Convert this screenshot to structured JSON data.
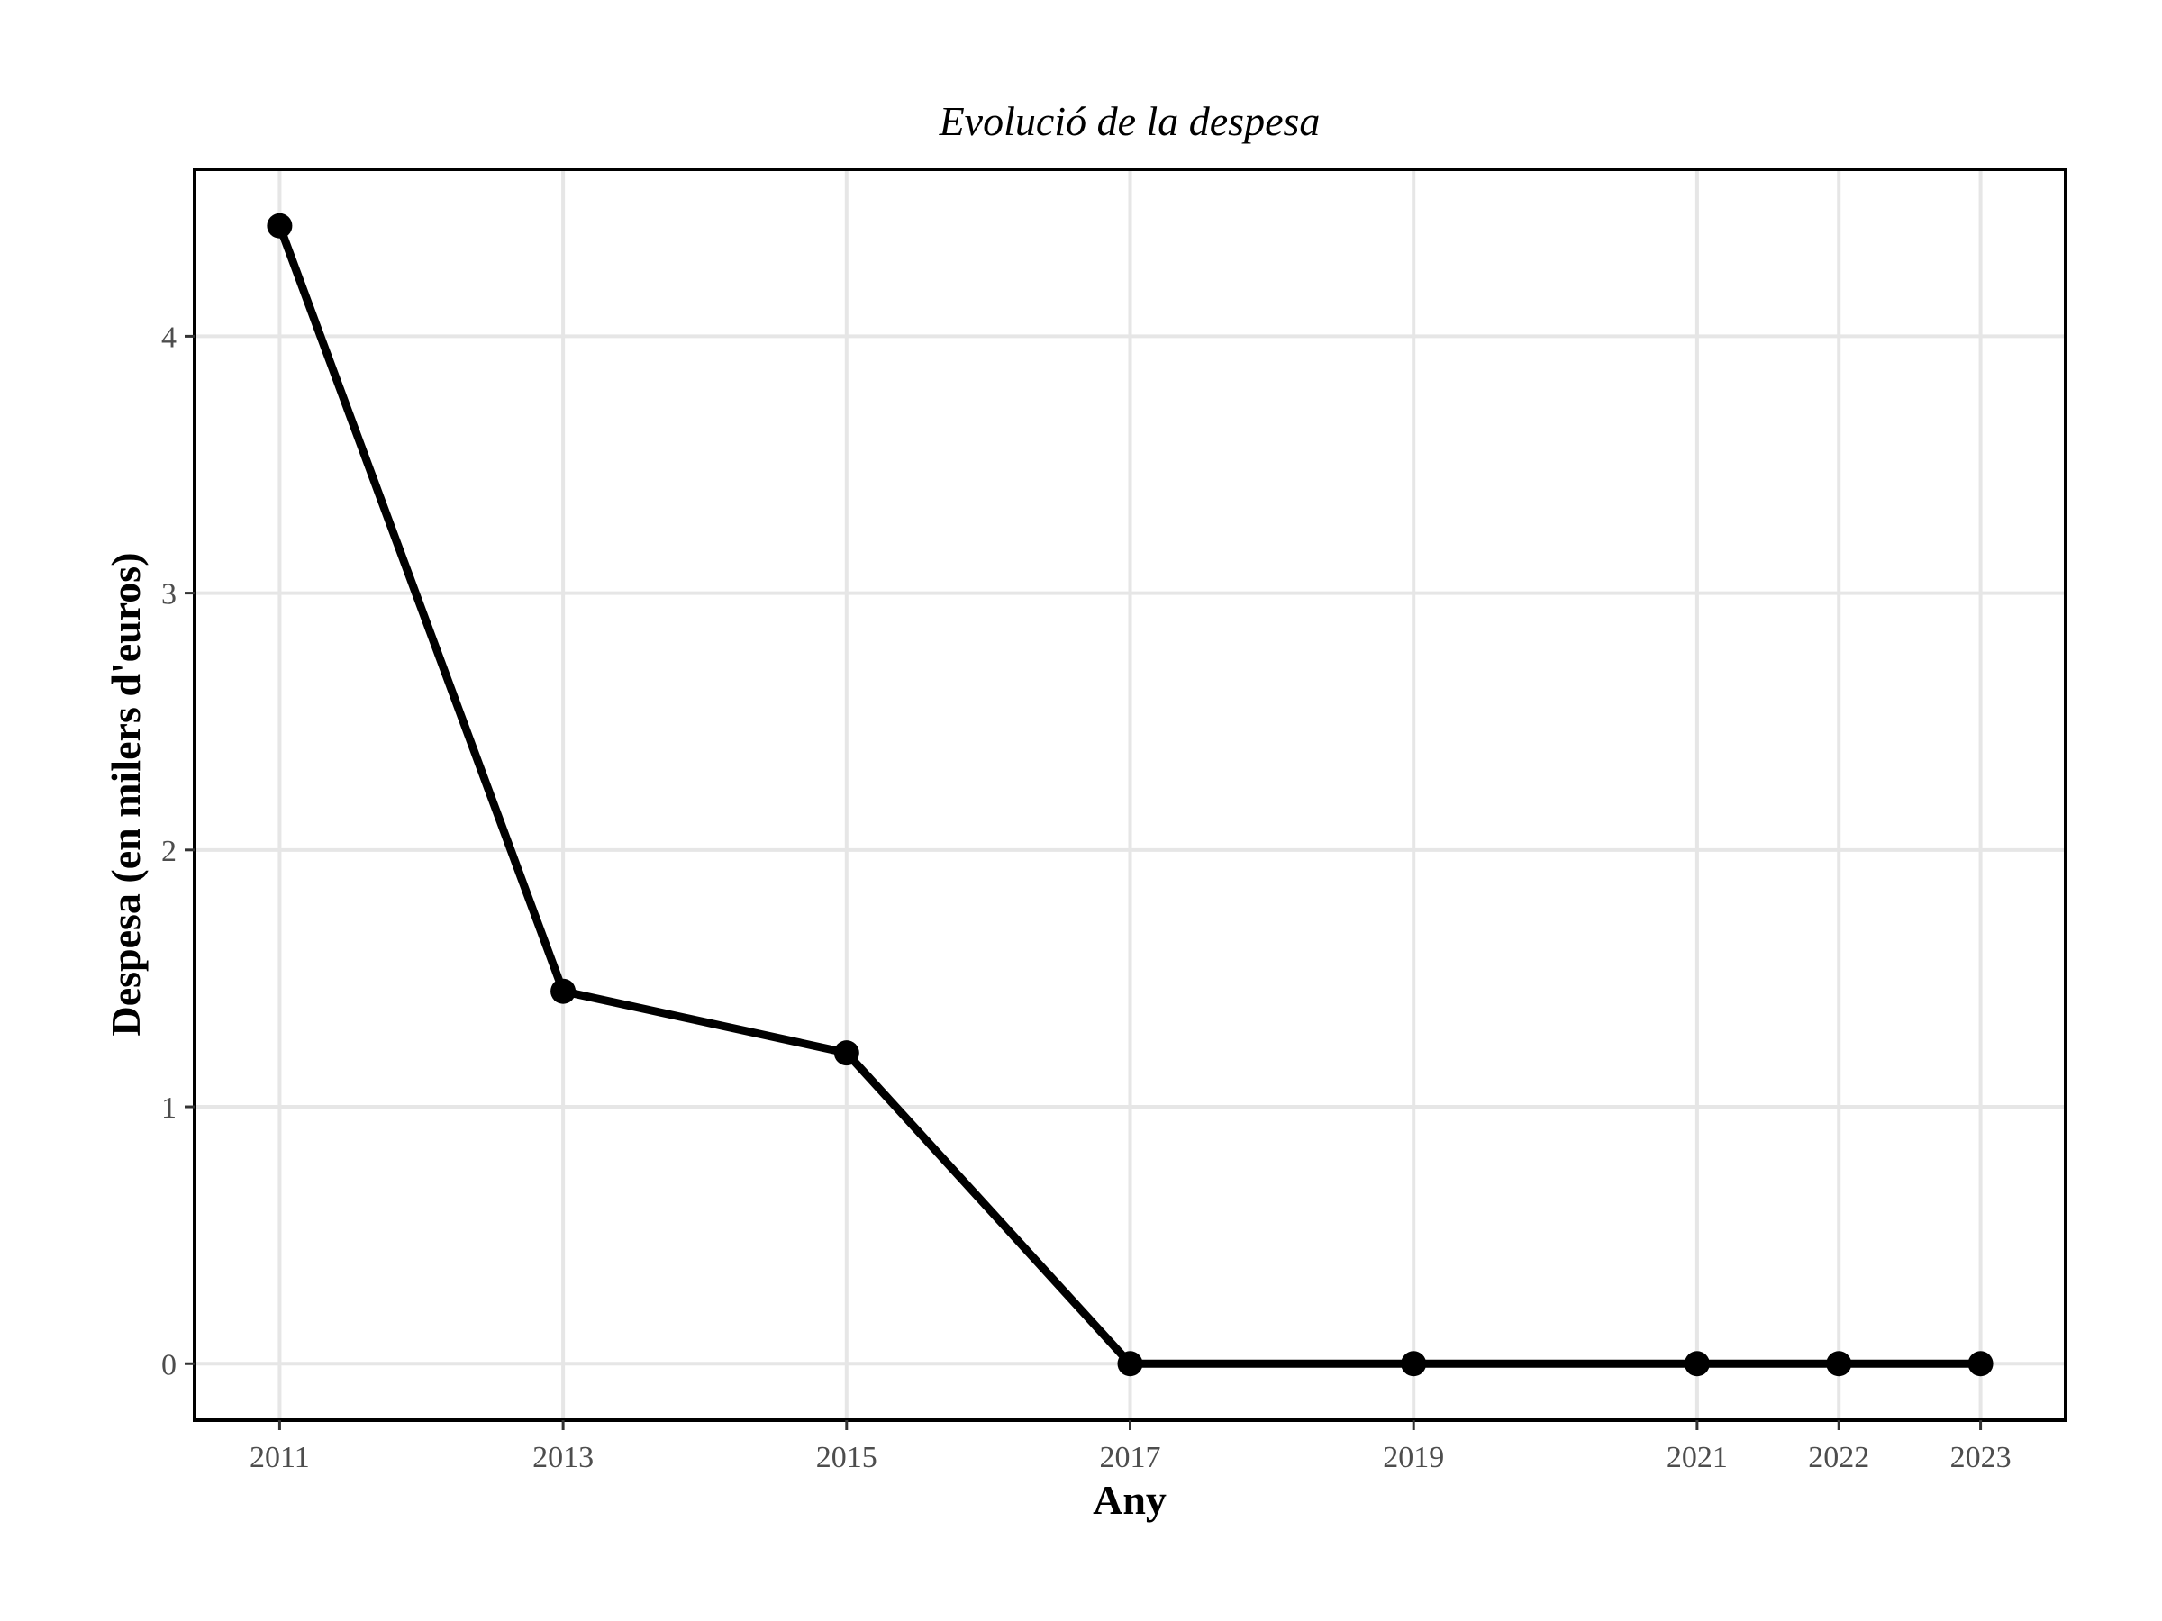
{
  "chart_data": {
    "type": "line",
    "title": "Evolució de la despesa",
    "xlabel": "Any",
    "ylabel": "Despesa (en milers d'euros)",
    "x": [
      2011,
      2013,
      2015,
      2017,
      2019,
      2021,
      2022,
      2023
    ],
    "series": [
      {
        "values": [
          4.43,
          1.45,
          1.21,
          0,
          0,
          0,
          0,
          0
        ]
      }
    ],
    "xticks": [
      2011,
      2013,
      2015,
      2017,
      2019,
      2021,
      2022,
      2023
    ],
    "yticks": [
      0,
      1,
      2,
      3,
      4
    ],
    "xlim": [
      2010.4,
      2023.6
    ],
    "ylim": [
      -0.22,
      4.65
    ],
    "grid": true,
    "legend": "none",
    "colors": {
      "line": "#000000",
      "grid": "#e6e6e6"
    }
  }
}
